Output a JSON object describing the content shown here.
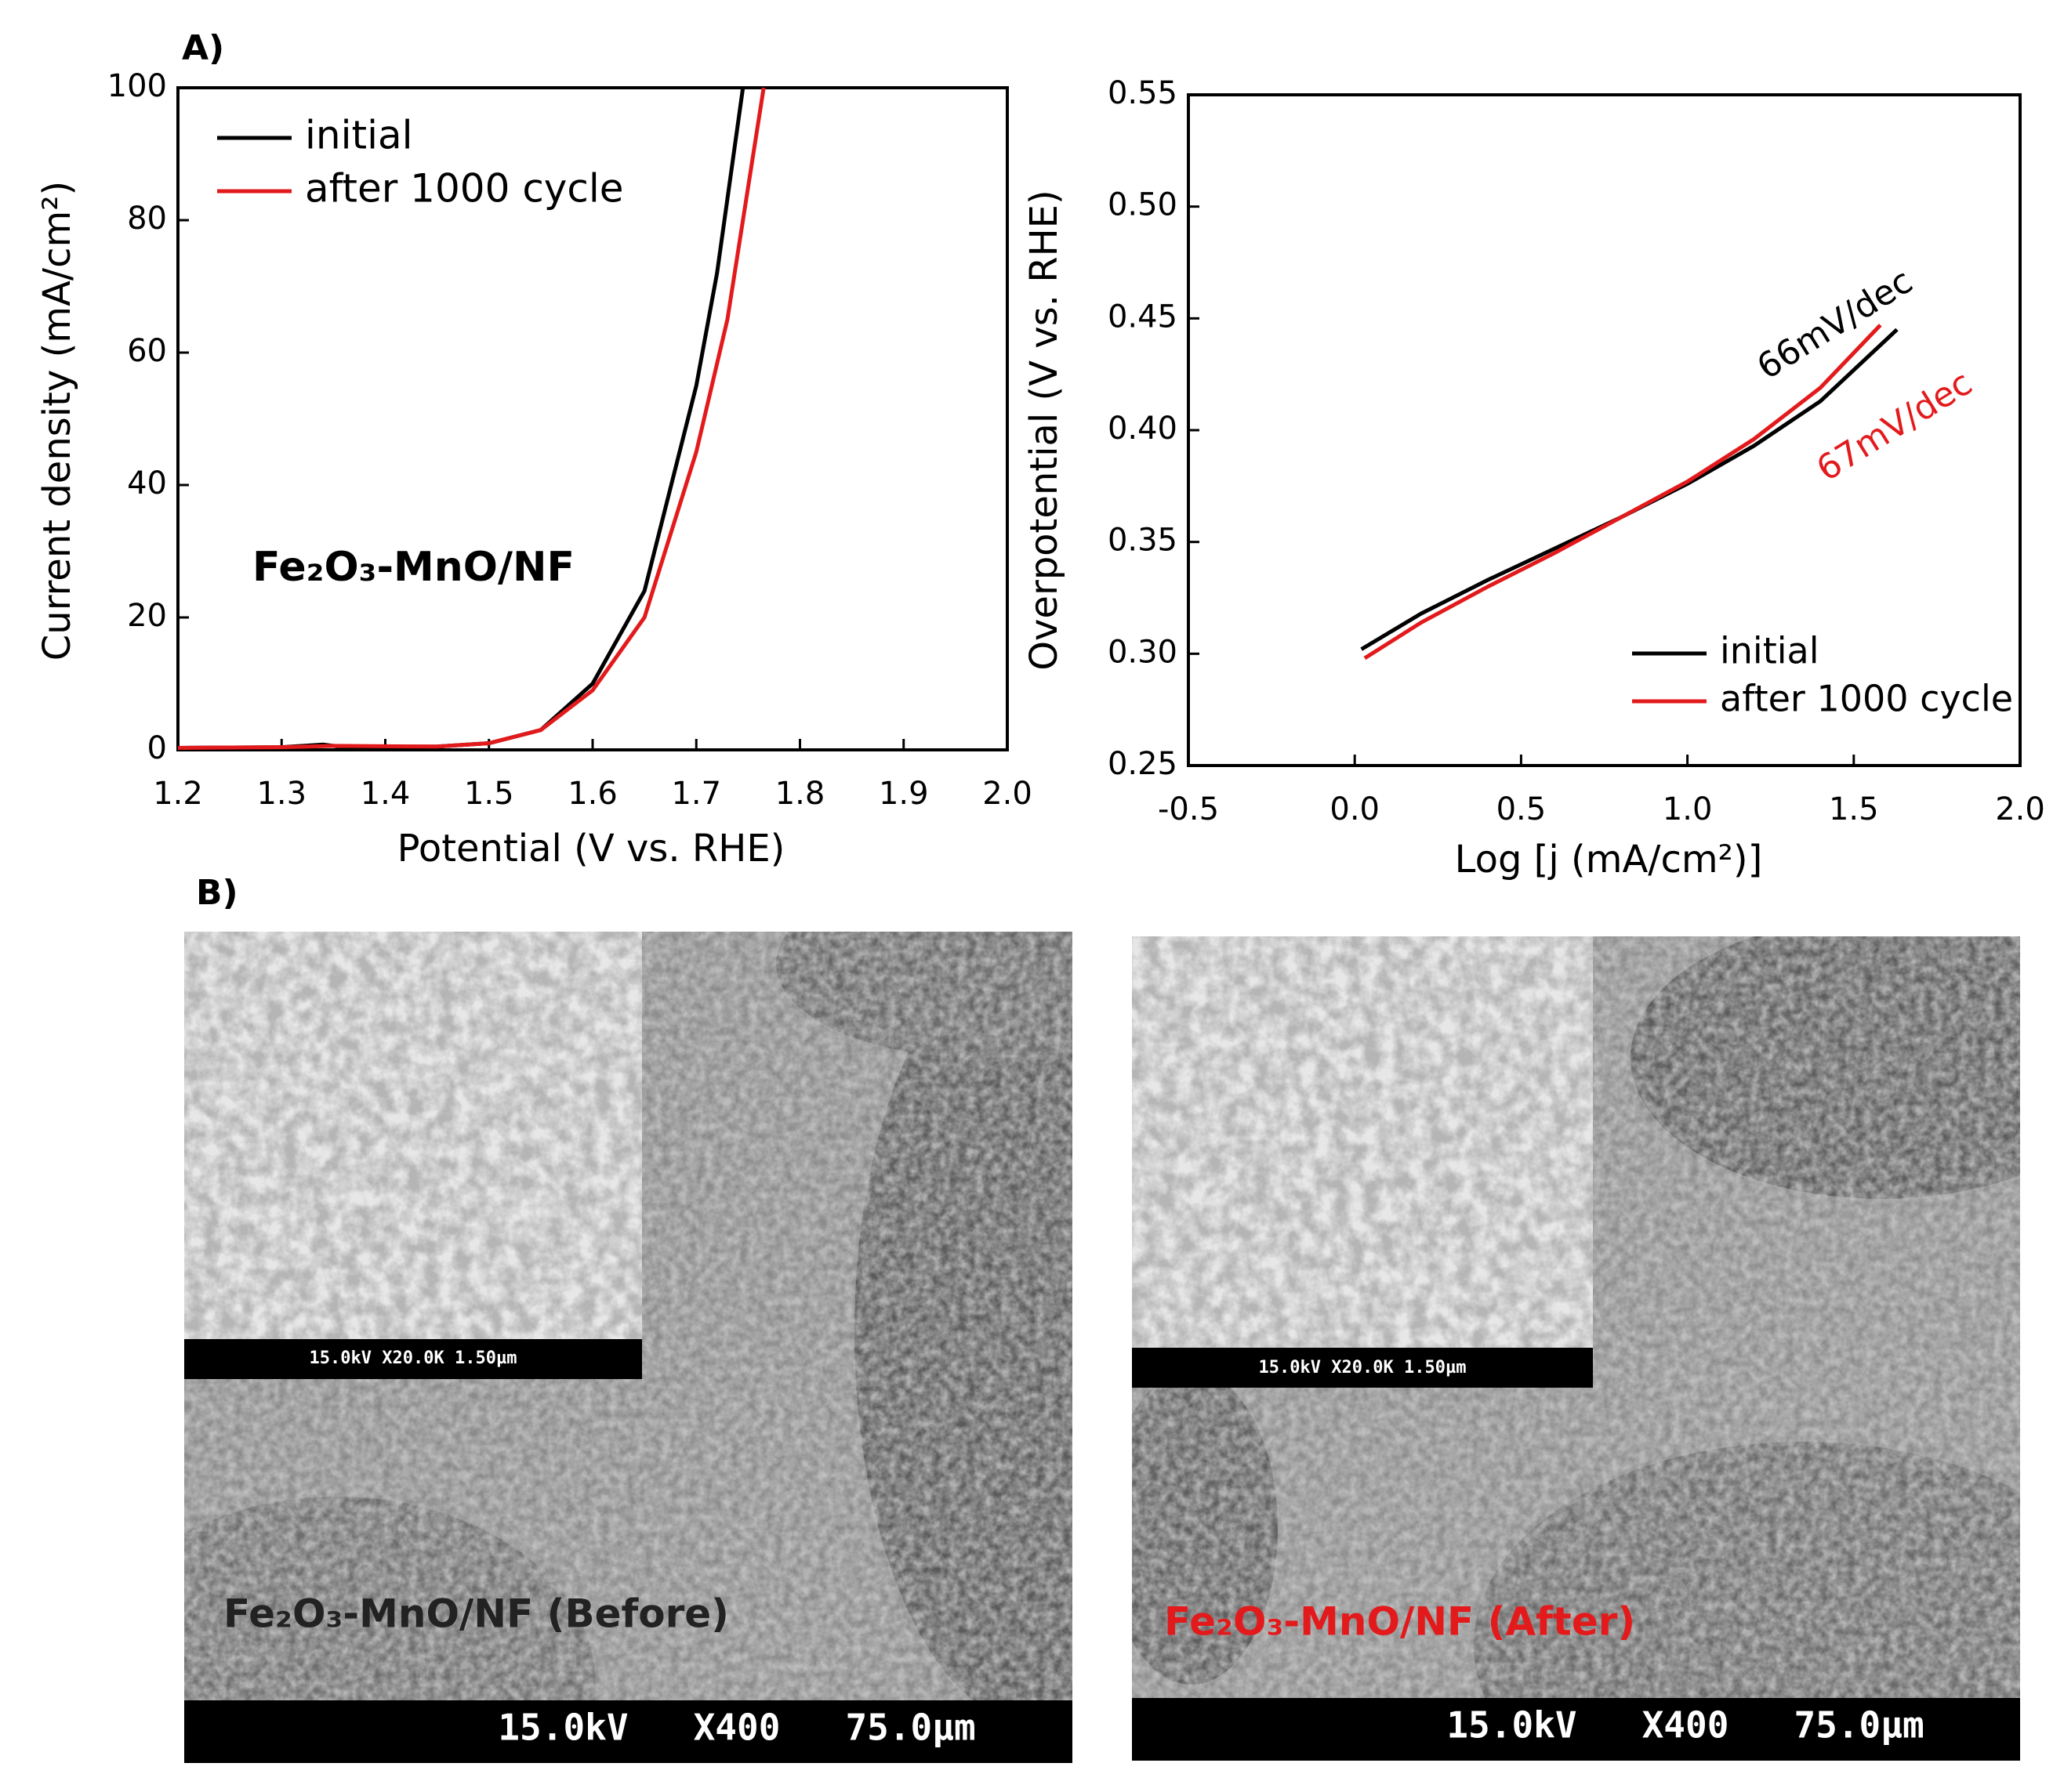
{
  "panel_labels": [
    "A)",
    "B)"
  ],
  "chart_data": [
    {
      "type": "line",
      "xlabel": "Potential (V vs. RHE)",
      "ylabel": "Current density (mA/cm²)",
      "xlim": [
        1.2,
        2.0
      ],
      "xticks": [
        1.2,
        1.3,
        1.4,
        1.5,
        1.6,
        1.7,
        1.8,
        1.9,
        {
          "value": 2.0,
          "label": "2.0"
        }
      ],
      "ylim": [
        0,
        100
      ],
      "yticks": [
        0,
        20,
        40,
        60,
        80,
        100
      ],
      "legend": "upper left",
      "annotations": [
        {
          "text": "Fe₂O₃-MnO/NF",
          "color": "#000000"
        }
      ],
      "series": [
        {
          "name": "initial",
          "color": "#000000",
          "x": [
            1.2,
            1.3,
            1.34,
            1.36,
            1.45,
            1.5,
            1.55,
            1.6,
            1.65,
            1.7,
            1.72,
            1.745
          ],
          "values": [
            0.3,
            0.4,
            0.8,
            0.4,
            0.5,
            1,
            3,
            10,
            24,
            55,
            72,
            100
          ]
        },
        {
          "name": "after 1000  cycle",
          "color": "#e31a1c",
          "x": [
            1.2,
            1.3,
            1.35,
            1.45,
            1.5,
            1.55,
            1.6,
            1.65,
            1.7,
            1.73,
            1.765
          ],
          "values": [
            0.3,
            0.4,
            0.6,
            0.5,
            1,
            3,
            9,
            20,
            45,
            65,
            100
          ]
        }
      ]
    },
    {
      "type": "line",
      "xlabel": "Log [j (mA/cm²)]",
      "ylabel": "Overpotential (V vs. RHE)",
      "xlim": [
        -0.5,
        2.0
      ],
      "xticks": [
        -0.5,
        {
          "value": 0.0,
          "label": "0.0"
        },
        0.5,
        {
          "value": 1.0,
          "label": "1.0"
        },
        1.5,
        {
          "value": 2.0,
          "label": "2.0"
        }
      ],
      "ylim": [
        0.25,
        0.55
      ],
      "yticks": [
        0.25,
        {
          "value": 0.3,
          "label": "0.30"
        },
        0.35,
        {
          "value": 0.4,
          "label": "0.40"
        },
        0.45,
        {
          "value": 0.5,
          "label": "0.50"
        },
        0.55
      ],
      "legend": "lower right",
      "annotations": [
        {
          "text": "66mV/dec",
          "color": "#000000"
        },
        {
          "text": "67mV/dec",
          "color": "#e31a1c"
        }
      ],
      "series": [
        {
          "name": "initial",
          "color": "#000000",
          "x": [
            0.02,
            0.2,
            0.4,
            0.6,
            0.8,
            1.0,
            1.2,
            1.4,
            1.63
          ],
          "values": [
            0.302,
            0.318,
            0.333,
            0.347,
            0.361,
            0.376,
            0.393,
            0.413,
            0.445
          ]
        },
        {
          "name": "after 1000 cycle",
          "color": "#e31a1c",
          "x": [
            0.03,
            0.2,
            0.4,
            0.6,
            0.8,
            1.0,
            1.2,
            1.4,
            1.58
          ],
          "values": [
            0.298,
            0.314,
            0.33,
            0.345,
            0.361,
            0.377,
            0.396,
            0.419,
            0.447
          ]
        }
      ]
    }
  ],
  "images": [
    {
      "caption": "Fe₂O₃-MnO/NF (Before)",
      "caption_color": "#222222",
      "inset_bar": "15.0kV X20.0K 1.50µm",
      "bar": "15.0kV   X400   75.0µm"
    },
    {
      "caption": "Fe₂O₃-MnO/NF (After)",
      "caption_color": "#e31a1c",
      "inset_bar": "15.0kV X20.0K 1.50µm",
      "bar": "15.0kV   X400   75.0µm"
    }
  ]
}
